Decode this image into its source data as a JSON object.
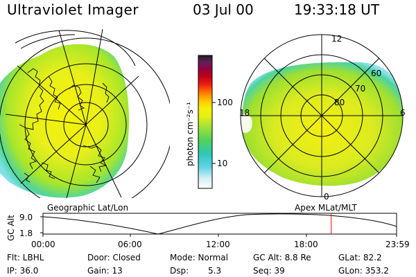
{
  "header": {
    "title": "Ultraviolet Imager",
    "date": "03 Jul 00",
    "time": "19:33:18 UT"
  },
  "colorbar": {
    "unit_label": "photon cm⁻²s⁻¹",
    "ticks": [
      {
        "label": "100",
        "value": 100
      },
      {
        "label": "10",
        "value": 10
      }
    ]
  },
  "left_panel": {
    "label": "Geographic Lat/Lon"
  },
  "right_panel": {
    "label": "Apex MLat/MLT",
    "mlt_labels": [
      {
        "label": "12",
        "hour": 12
      },
      {
        "label": "18",
        "hour": 18
      },
      {
        "label": "6",
        "hour": 6
      },
      {
        "label": "0",
        "hour": 0
      }
    ],
    "lat_labels": [
      {
        "label": "60",
        "lat": 60
      },
      {
        "label": "70",
        "lat": 70
      },
      {
        "label": "80",
        "lat": 80
      }
    ]
  },
  "timeline": {
    "ylabel": "GC Alt",
    "yticks": [
      "9.0",
      "1.8"
    ],
    "ylim": [
      1.8,
      9.0
    ],
    "xticks": [
      "00:00",
      "06:00",
      "12:00",
      "18:00",
      "23:59"
    ],
    "marker_time": "19:33",
    "marker_color": "#ff0000"
  },
  "info": {
    "flt": "Flt: LBHL",
    "ip": "IP: 36.0",
    "door": "Door: Closed",
    "gain": "Gain: 13",
    "mode": "Mode: Normal",
    "dsp_label": "Dsp:",
    "dsp_value": "5.3",
    "gc_alt": "GC Alt: 8.8 Re",
    "seq": "Seq: 39",
    "glat": "GLat: 82.2",
    "glon": "GLon: 353.2"
  }
}
